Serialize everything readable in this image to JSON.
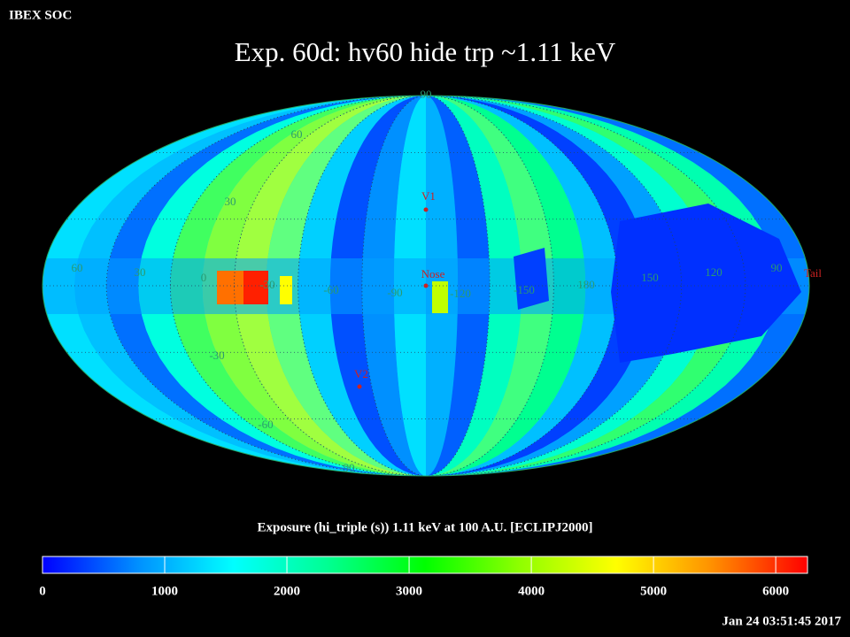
{
  "header": {
    "source": "IBEX SOC",
    "title": "Exp.   60d: hv60 hide trp ~1.11 keV",
    "timestamp": "Jan 24 03:51:45 2017"
  },
  "map": {
    "latitude_labels": [
      "90",
      "60",
      "30",
      "-30",
      "-60",
      "-90"
    ],
    "longitude_labels": [
      "60",
      "30",
      "0",
      "-30",
      "-60",
      "-90",
      "-120",
      "-150",
      "180",
      "150",
      "120",
      "90"
    ],
    "markers": [
      "V1",
      "Nose",
      "V2",
      "Tail"
    ]
  },
  "colorbar": {
    "label": "Exposure (hi_triple (s))  1.11 keV at 100 A.U. [ECLIPJ2000]",
    "lim": [
      0,
      6260
    ],
    "ticks": [
      0,
      1000,
      2000,
      3000,
      4000,
      5000,
      6000
    ],
    "colormap": [
      "#0000ff",
      "#0090ff",
      "#00ffff",
      "#00ff90",
      "#00ff00",
      "#90ff00",
      "#ffff00",
      "#ff9000",
      "#ff0000"
    ]
  }
}
